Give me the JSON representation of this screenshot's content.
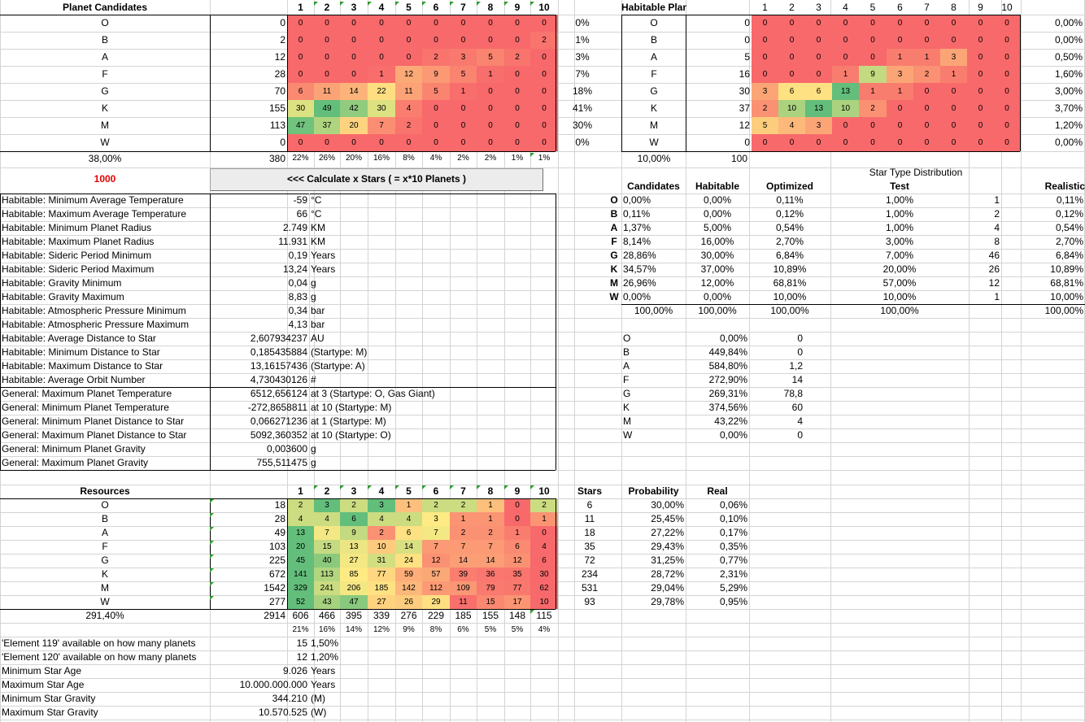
{
  "cols": [
    "1",
    "2",
    "3",
    "4",
    "5",
    "6",
    "7",
    "8",
    "9",
    "10"
  ],
  "star_types": [
    "O",
    "B",
    "A",
    "F",
    "G",
    "K",
    "M",
    "W"
  ],
  "planet_candidates": {
    "title": "Planet Candidates",
    "totals": [
      "0",
      "2",
      "12",
      "28",
      "70",
      "155",
      "113",
      "0"
    ],
    "grid": [
      [
        "0",
        "0",
        "0",
        "0",
        "0",
        "0",
        "0",
        "0",
        "0",
        "0"
      ],
      [
        "0",
        "0",
        "0",
        "0",
        "0",
        "0",
        "0",
        "0",
        "0",
        "2"
      ],
      [
        "0",
        "0",
        "0",
        "0",
        "0",
        "2",
        "3",
        "5",
        "2",
        "0"
      ],
      [
        "0",
        "0",
        "0",
        "1",
        "12",
        "9",
        "5",
        "1",
        "0",
        "0"
      ],
      [
        "6",
        "11",
        "14",
        "22",
        "11",
        "5",
        "1",
        "0",
        "0",
        "0"
      ],
      [
        "30",
        "49",
        "42",
        "30",
        "4",
        "0",
        "0",
        "0",
        "0",
        "0"
      ],
      [
        "47",
        "37",
        "20",
        "7",
        "2",
        "0",
        "0",
        "0",
        "0",
        "0"
      ],
      [
        "0",
        "0",
        "0",
        "0",
        "0",
        "0",
        "0",
        "0",
        "0",
        "0"
      ]
    ],
    "percents": [
      "0%",
      "1%",
      "3%",
      "7%",
      "18%",
      "41%",
      "30%",
      "0%"
    ],
    "footer_left": "38,00%",
    "footer_total": "380",
    "col_percents": [
      "22%",
      "26%",
      "20%",
      "16%",
      "8%",
      "4%",
      "2%",
      "2%",
      "1%",
      "1%"
    ]
  },
  "habitable_planets": {
    "title": "Habitable Planets",
    "totals": [
      "0",
      "0",
      "5",
      "16",
      "30",
      "37",
      "12",
      "0"
    ],
    "grid": [
      [
        "0",
        "0",
        "0",
        "0",
        "0",
        "0",
        "0",
        "0",
        "0",
        "0"
      ],
      [
        "0",
        "0",
        "0",
        "0",
        "0",
        "0",
        "0",
        "0",
        "0",
        "0"
      ],
      [
        "0",
        "0",
        "0",
        "0",
        "0",
        "1",
        "1",
        "3",
        "0",
        "0"
      ],
      [
        "0",
        "0",
        "0",
        "1",
        "9",
        "3",
        "2",
        "1",
        "0",
        "0"
      ],
      [
        "3",
        "6",
        "6",
        "13",
        "1",
        "1",
        "0",
        "0",
        "0",
        "0"
      ],
      [
        "2",
        "10",
        "13",
        "10",
        "2",
        "0",
        "0",
        "0",
        "0",
        "0"
      ],
      [
        "5",
        "4",
        "3",
        "0",
        "0",
        "0",
        "0",
        "0",
        "0",
        "0"
      ],
      [
        "0",
        "0",
        "0",
        "0",
        "0",
        "0",
        "0",
        "0",
        "0",
        "0"
      ]
    ],
    "percents": [
      "0,00%",
      "0,00%",
      "0,50%",
      "1,60%",
      "3,00%",
      "3,70%",
      "1,20%",
      "0,00%"
    ],
    "footer_left": "10,00%",
    "footer_total": "100"
  },
  "calc": {
    "value": "1000",
    "button_label": "<<< Calculate x Stars ( = x*10 Planets )"
  },
  "stats": [
    {
      "label": "Habitable: Minimum Average Temperature",
      "value": "-59",
      "unit": "°C"
    },
    {
      "label": "Habitable: Maximum Average Temperature",
      "value": "66",
      "unit": "°C"
    },
    {
      "label": "Habitable: Minimum Planet Radius",
      "value": "2.749",
      "unit": "KM"
    },
    {
      "label": "Habitable: Maximum Planet Radius",
      "value": "11.931",
      "unit": "KM"
    },
    {
      "label": "Habitable: Sideric Period Minimum",
      "value": "0,19",
      "unit": "Years"
    },
    {
      "label": "Habitable: Sideric Period Maximum",
      "value": "13,24",
      "unit": "Years"
    },
    {
      "label": "Habitable: Gravity Minimum",
      "value": "0,04",
      "unit": "g"
    },
    {
      "label": "Habitable: Gravity Maximum",
      "value": "8,83",
      "unit": "g"
    },
    {
      "label": "Habitable: Atmospheric Pressure Minimum",
      "value": "0,34",
      "unit": "bar"
    },
    {
      "label": "Habitable: Atmospheric Pressure Maximum",
      "value": "4,13",
      "unit": "bar"
    },
    {
      "label": "Habitable: Average Distance to Star",
      "value": "2,607934237",
      "unit": "AU"
    },
    {
      "label": "Habitable: Minimum Distance to Star",
      "value": "0,185435884",
      "unit": "(Startype: M)"
    },
    {
      "label": "Habitable: Maximum Distance to Star",
      "value": "13,16157436",
      "unit": "(Startype: A)"
    },
    {
      "label": "Habitable: Average Orbit Number",
      "value": "4,730430126",
      "unit": "#"
    },
    {
      "label": "General: Maximum Planet Temperature",
      "value": "6512,656124",
      "unit": "at 3 (Startype: O, Gas Giant)"
    },
    {
      "label": "General: Minimum Planet Temperature",
      "value": "-272,8658811",
      "unit": "at 10 (Startype: M)"
    },
    {
      "label": "General: Minimum Planet Distance to Star",
      "value": "0,066271236",
      "unit": "at 1 (Startype: M)"
    },
    {
      "label": "General: Maximum Planet Distance to Star",
      "value": "5092,360352",
      "unit": "at 10 (Startype: O)"
    },
    {
      "label": "General: Minimum Planet Gravity",
      "value": "0,003600",
      "unit": "g"
    },
    {
      "label": "General: Maximum Planet Gravity",
      "value": "755,511475",
      "unit": "g"
    }
  ],
  "star_dist": {
    "title": "Star Type Distribution",
    "headers": [
      "Candidates",
      "Habitable",
      "Optimized",
      "Test",
      "",
      "Realistic"
    ],
    "rows": [
      [
        "0,00%",
        "0,00%",
        "0,11%",
        "1,00%",
        "1",
        "0,11%"
      ],
      [
        "0,11%",
        "0,00%",
        "0,12%",
        "1,00%",
        "2",
        "0,12%"
      ],
      [
        "1,37%",
        "5,00%",
        "0,54%",
        "1,00%",
        "4",
        "0,54%"
      ],
      [
        "8,14%",
        "16,00%",
        "2,70%",
        "3,00%",
        "8",
        "2,70%"
      ],
      [
        "28,86%",
        "30,00%",
        "6,84%",
        "7,00%",
        "46",
        "6,84%"
      ],
      [
        "34,57%",
        "37,00%",
        "10,89%",
        "20,00%",
        "26",
        "10,89%"
      ],
      [
        "26,96%",
        "12,00%",
        "68,81%",
        "57,00%",
        "12",
        "68,81%"
      ],
      [
        "0,00%",
        "0,00%",
        "10,00%",
        "10,00%",
        "1",
        "10,00%"
      ]
    ],
    "totals": [
      "100,00%",
      "100,00%",
      "100,00%",
      "100,00%",
      "",
      "100,00%"
    ]
  },
  "ratio": {
    "rows": [
      [
        "0,00%",
        "0"
      ],
      [
        "449,84%",
        "0"
      ],
      [
        "584,80%",
        "1,2"
      ],
      [
        "272,90%",
        "14"
      ],
      [
        "269,31%",
        "78,8"
      ],
      [
        "374,56%",
        "60"
      ],
      [
        "43,22%",
        "4"
      ],
      [
        "0,00%",
        "0"
      ]
    ]
  },
  "resources": {
    "title": "Resources",
    "totals": [
      "18",
      "28",
      "49",
      "103",
      "225",
      "672",
      "1542",
      "277"
    ],
    "grid": [
      [
        "2",
        "3",
        "2",
        "3",
        "1",
        "2",
        "2",
        "1",
        "0",
        "2"
      ],
      [
        "4",
        "4",
        "6",
        "4",
        "4",
        "3",
        "1",
        "1",
        "0",
        "1"
      ],
      [
        "13",
        "7",
        "9",
        "2",
        "6",
        "7",
        "2",
        "2",
        "1",
        "0"
      ],
      [
        "20",
        "15",
        "13",
        "10",
        "14",
        "7",
        "7",
        "7",
        "6",
        "4"
      ],
      [
        "45",
        "40",
        "27",
        "31",
        "24",
        "12",
        "14",
        "14",
        "12",
        "6"
      ],
      [
        "141",
        "113",
        "85",
        "77",
        "59",
        "57",
        "39",
        "36",
        "35",
        "30"
      ],
      [
        "329",
        "241",
        "206",
        "185",
        "142",
        "112",
        "109",
        "79",
        "77",
        "62"
      ],
      [
        "52",
        "43",
        "47",
        "27",
        "26",
        "29",
        "11",
        "15",
        "17",
        "10"
      ]
    ],
    "footer_left": "291,40%",
    "footer_total": "2914",
    "col_totals": [
      "606",
      "466",
      "395",
      "339",
      "276",
      "229",
      "185",
      "155",
      "148",
      "115"
    ],
    "col_percents": [
      "21%",
      "16%",
      "14%",
      "12%",
      "9%",
      "8%",
      "6%",
      "5%",
      "5%",
      "4%"
    ]
  },
  "stars_prob": {
    "headers": [
      "Stars",
      "Probability",
      "Real"
    ],
    "rows": [
      [
        "6",
        "30,00%",
        "0,06%"
      ],
      [
        "11",
        "25,45%",
        "0,10%"
      ],
      [
        "18",
        "27,22%",
        "0,17%"
      ],
      [
        "35",
        "29,43%",
        "0,35%"
      ],
      [
        "72",
        "31,25%",
        "0,77%"
      ],
      [
        "234",
        "28,72%",
        "2,31%"
      ],
      [
        "531",
        "29,04%",
        "5,29%"
      ],
      [
        "93",
        "29,78%",
        "0,95%"
      ]
    ]
  },
  "extra_stats": [
    {
      "label": "'Element 119' available on how many planets",
      "value": "15",
      "unit": "1,50%"
    },
    {
      "label": "'Element 120' available on how many planets",
      "value": "12",
      "unit": "1,20%"
    },
    {
      "label": "Minimum Star Age",
      "value": "9.026",
      "unit": "Years"
    },
    {
      "label": "Maximum Star Age",
      "value": "10.000.000.000",
      "unit": "Years"
    },
    {
      "label": "Minimum Star Gravity",
      "value": "344.210",
      "unit": "(M)"
    },
    {
      "label": "Maximum Star Gravity",
      "value": "10.570.525",
      "unit": "(W)"
    }
  ],
  "colors": {
    "red": "#f8696b",
    "yellow": "#ffeb84",
    "green": "#63be7b",
    "grid": "#d4d4d4"
  }
}
